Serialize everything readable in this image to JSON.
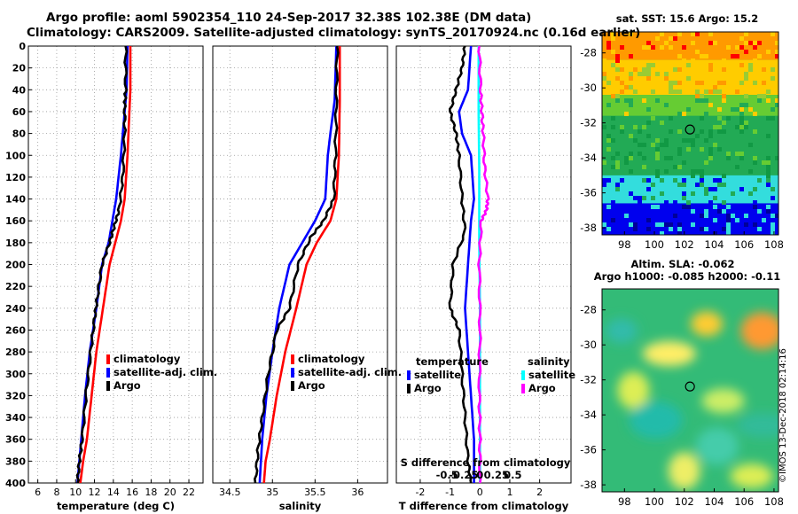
{
  "header": {
    "line1": "Argo profile: aoml 5902354_110 24-Sep-2017 32.38S 102.38E (DM data)",
    "line2": "Climatology: CARS2009. Satellite-adjusted climatology: synTS_20170924.nc (0.16d earlier)"
  },
  "copyright": "©IMOS 13-Dec-2018 02:14:16",
  "colors": {
    "clim": "#ff0000",
    "sat": "#0000ff",
    "argo": "#000000",
    "sal_sat": "#00ffff",
    "sal_argo": "#ff00ff"
  },
  "chart_data": [
    {
      "type": "line",
      "id": "temperature",
      "xlabel": "temperature (deg C)",
      "ylabel": "pressure",
      "xlim": [
        5,
        23.5
      ],
      "ylim": [
        400,
        0
      ],
      "xticks": [
        6,
        8,
        10,
        12,
        14,
        16,
        18,
        20,
        22
      ],
      "yticks": [
        0,
        20,
        40,
        60,
        80,
        100,
        120,
        140,
        160,
        180,
        200,
        220,
        240,
        260,
        280,
        300,
        320,
        340,
        360,
        380,
        400
      ],
      "grid": true,
      "legend": {
        "placement": "bottom-right",
        "entries": [
          "climatology",
          "satellite-adj. clim.",
          "Argo"
        ]
      },
      "series": [
        {
          "name": "climatology",
          "color": "#ff0000",
          "x": [
            15.8,
            15.8,
            15.7,
            15.5,
            15.2,
            14.8,
            14.2,
            13.6,
            12.9,
            12.2,
            11.7,
            11.2,
            10.8,
            10.5
          ],
          "y": [
            0,
            40,
            60,
            100,
            140,
            160,
            180,
            200,
            240,
            280,
            320,
            360,
            380,
            400
          ]
        },
        {
          "name": "satellite-adj. clim.",
          "color": "#0000ff",
          "x": [
            15.5,
            15.4,
            15.2,
            14.8,
            14.3,
            13.9,
            13.5,
            12.8,
            12.2,
            11.5,
            11.0,
            10.6,
            10.4,
            10.2
          ],
          "y": [
            0,
            40,
            60,
            100,
            140,
            160,
            180,
            200,
            240,
            280,
            320,
            360,
            380,
            400
          ]
        },
        {
          "name": "Argo",
          "color": "#000000",
          "x": [
            15.3,
            15.3,
            15.2,
            15.2,
            15.0,
            14.6,
            14.1,
            13.6,
            12.8,
            12.3,
            12.0,
            11.6,
            11.1,
            10.7,
            10.4,
            10.2
          ],
          "y": [
            0,
            40,
            55,
            80,
            120,
            150,
            165,
            180,
            200,
            230,
            250,
            280,
            320,
            360,
            380,
            400
          ]
        }
      ]
    },
    {
      "type": "line",
      "id": "salinity",
      "xlabel": "salinity",
      "xlim": [
        34.3,
        36.35
      ],
      "ylim": [
        400,
        0
      ],
      "xticks": [
        34.5,
        35,
        35.5,
        36
      ],
      "xticklabels": [
        "34.5",
        "35",
        "35.5",
        "36"
      ],
      "grid": true,
      "legend": {
        "placement": "bottom-right",
        "entries": [
          "climatology",
          "satellite-adj. clim.",
          "Argo"
        ]
      },
      "series": [
        {
          "name": "climatology",
          "color": "#ff0000",
          "x": [
            35.79,
            35.79,
            35.78,
            35.75,
            35.68,
            35.52,
            35.4,
            35.28,
            35.15,
            35.05,
            34.97,
            34.92,
            34.9
          ],
          "y": [
            0,
            50,
            100,
            140,
            160,
            180,
            200,
            240,
            280,
            320,
            360,
            380,
            400
          ]
        },
        {
          "name": "satellite-adj. clim.",
          "color": "#0000ff",
          "x": [
            35.75,
            35.73,
            35.68,
            35.65,
            35.62,
            35.5,
            35.35,
            35.2,
            35.08,
            35.0,
            34.93,
            34.88,
            34.85
          ],
          "y": [
            0,
            50,
            80,
            100,
            140,
            160,
            180,
            200,
            240,
            280,
            320,
            360,
            400
          ]
        },
        {
          "name": "Argo",
          "color": "#000000",
          "x": [
            35.76,
            35.75,
            35.74,
            35.72,
            35.6,
            35.45,
            35.3,
            35.2,
            35.05,
            34.95,
            34.88,
            34.83,
            34.8
          ],
          "y": [
            0,
            50,
            100,
            140,
            160,
            175,
            200,
            240,
            260,
            300,
            340,
            370,
            400
          ]
        }
      ]
    },
    {
      "type": "line",
      "id": "difference",
      "xlabel": "T difference from climatology",
      "top_axis_label": "S difference from climatology",
      "xlim": [
        -2.8,
        3.05
      ],
      "ylim": [
        400,
        0
      ],
      "xticks": [
        -2,
        -1,
        0,
        1,
        2
      ],
      "top_xticks": [
        -0.5,
        -0.25,
        0,
        0.25,
        0.5
      ],
      "top_xticklabels": [
        "-0.5",
        "-0.25",
        "0",
        "0.25",
        "0.5"
      ],
      "grid": true,
      "legend": {
        "placement": "bottom",
        "temperature_title": "temperature",
        "salinity_title": "salinity",
        "entries": [
          "satellite",
          "Argo",
          "satellite",
          "Argo"
        ]
      },
      "series": [
        {
          "name": "temperature satellite",
          "color": "#0000ff",
          "x": [
            -0.3,
            -0.4,
            -0.7,
            -0.6,
            -0.3,
            -0.2,
            -0.3,
            -0.4,
            -0.5,
            -0.4,
            -0.3,
            -0.2,
            -0.2
          ],
          "y": [
            0,
            40,
            60,
            80,
            100,
            140,
            160,
            200,
            240,
            280,
            320,
            360,
            400
          ]
        },
        {
          "name": "temperature Argo",
          "color": "#000000",
          "x": [
            -0.5,
            -0.6,
            -0.8,
            -1.0,
            -0.8,
            -0.7,
            -0.6,
            -0.5,
            -0.9,
            -1.0,
            -0.7,
            -0.6,
            -0.5,
            -0.4,
            -0.3
          ],
          "y": [
            0,
            20,
            40,
            60,
            80,
            100,
            140,
            170,
            200,
            240,
            260,
            300,
            340,
            380,
            400
          ]
        },
        {
          "name": "salinity satellite",
          "color": "#00ffff",
          "x_scale": "top",
          "x": [
            -0.02,
            -0.02,
            -0.01,
            -0.01,
            0.0,
            0.0,
            0.0,
            0.0
          ],
          "y": [
            0,
            60,
            120,
            180,
            240,
            300,
            360,
            400
          ]
        },
        {
          "name": "salinity Argo",
          "color": "#ff00ff",
          "x_scale": "top",
          "x": [
            -0.01,
            0.01,
            0.03,
            0.05,
            0.07,
            0.12,
            0.1,
            0.02,
            -0.01,
            0.0,
            -0.01,
            0.0,
            0.0
          ],
          "y": [
            0,
            40,
            60,
            80,
            110,
            140,
            150,
            160,
            200,
            260,
            320,
            360,
            400
          ]
        }
      ]
    },
    {
      "type": "heatmap",
      "id": "sst_map",
      "title": "sat. SST: 15.6 Argo: 15.2",
      "xlim": [
        96.5,
        108.3
      ],
      "ylim": [
        -38.4,
        -26.8
      ],
      "xticks": [
        98,
        100,
        102,
        104,
        106,
        108
      ],
      "yticks": [
        -28,
        -30,
        -32,
        -34,
        -36,
        -38
      ],
      "marker": {
        "lon": 102.38,
        "lat": -32.38
      },
      "bands": [
        {
          "lat_from": -26.8,
          "lat_to": -28.4,
          "color": "#ff9a00"
        },
        {
          "lat_from": -28.4,
          "lat_to": -30.4,
          "color": "#ffcc00"
        },
        {
          "lat_from": -30.4,
          "lat_to": -31.6,
          "color": "#66cc33"
        },
        {
          "lat_from": -31.6,
          "lat_to": -35.0,
          "color": "#22aa55"
        },
        {
          "lat_from": -35.0,
          "lat_to": -36.6,
          "color": "#33dddd"
        },
        {
          "lat_from": -36.6,
          "lat_to": -38.4,
          "color": "#0000ee"
        }
      ]
    },
    {
      "type": "heatmap",
      "id": "sla_map",
      "title_line1": "Altim. SLA: -0.062",
      "title_line2": "Argo h1000: -0.085 h2000: -0.11",
      "xlim": [
        96.5,
        108.3
      ],
      "ylim": [
        -38.4,
        -26.8
      ],
      "xticks": [
        98,
        100,
        102,
        104,
        106,
        108
      ],
      "yticks": [
        -28,
        -30,
        -32,
        -34,
        -36,
        -38
      ],
      "marker": {
        "lon": 102.38,
        "lat": -32.38
      },
      "blobs": [
        {
          "lon": 103.5,
          "lat": -28.8,
          "color": "#ffcc33"
        },
        {
          "lon": 107.2,
          "lat": -29.2,
          "color": "#ff9933"
        },
        {
          "lon": 101.0,
          "lat": -30.5,
          "color": "#ffee66"
        },
        {
          "lon": 98.6,
          "lat": -32.6,
          "color": "#ddee55"
        },
        {
          "lon": 104.6,
          "lat": -33.2,
          "color": "#ccee66"
        },
        {
          "lon": 100.1,
          "lat": -34.3,
          "color": "#22bbaa"
        },
        {
          "lon": 97.8,
          "lat": -29.2,
          "color": "#33bbaa"
        },
        {
          "lon": 104.2,
          "lat": -35.8,
          "color": "#44ccaa"
        },
        {
          "lon": 107.3,
          "lat": -34.6,
          "color": "#33bb99"
        },
        {
          "lon": 102.0,
          "lat": -37.2,
          "color": "#eeee66"
        },
        {
          "lon": 106.5,
          "lat": -37.5,
          "color": "#ddee55"
        }
      ]
    }
  ]
}
